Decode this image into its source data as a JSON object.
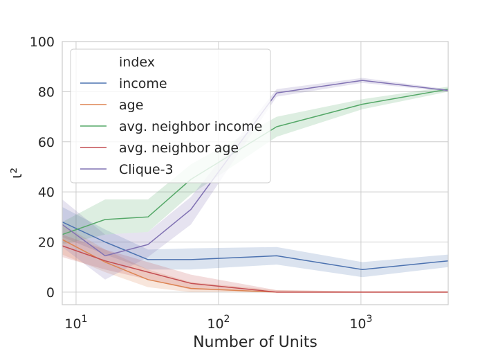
{
  "chart_data": {
    "type": "line",
    "title": "",
    "xlabel": "Number of Units",
    "ylabel": "ι²",
    "x_scale": "log",
    "xlim": [
      8,
      4096
    ],
    "ylim": [
      -5,
      100
    ],
    "grid": true,
    "x_ticks": [
      {
        "value": 10,
        "base": "10",
        "exp": "1"
      },
      {
        "value": 100,
        "base": "10",
        "exp": "2"
      },
      {
        "value": 1000,
        "base": "10",
        "exp": "3"
      }
    ],
    "y_ticks": [
      {
        "value": 0,
        "label": "0"
      },
      {
        "value": 20,
        "label": "20"
      },
      {
        "value": 40,
        "label": "40"
      },
      {
        "value": 60,
        "label": "60"
      },
      {
        "value": 80,
        "label": "80"
      },
      {
        "value": 100,
        "label": "100"
      }
    ],
    "legend": {
      "title": "index",
      "placement": "upper-left"
    },
    "x": [
      8,
      16,
      32,
      64,
      256,
      1024,
      4096
    ],
    "series": [
      {
        "name": "income",
        "color": "#4c72b0",
        "values": [
          28,
          20,
          13,
          13,
          14.5,
          9,
          12.5
        ],
        "lower": [
          22,
          15,
          9,
          9,
          11,
          6,
          10
        ],
        "upper": [
          34,
          25,
          17,
          17.5,
          18,
          12,
          15
        ]
      },
      {
        "name": "age",
        "color": "#dd8452",
        "values": [
          21,
          12,
          5,
          1.5,
          0,
          0,
          0
        ],
        "lower": [
          15,
          8,
          2,
          0,
          0,
          0,
          0
        ],
        "upper": [
          27,
          17,
          9,
          4,
          0.8,
          0.3,
          0.3
        ]
      },
      {
        "name": "avg. neighbor income",
        "color": "#55a868",
        "values": [
          23,
          29,
          30,
          45,
          66,
          75,
          81
        ],
        "lower": [
          19,
          23,
          24,
          39,
          62,
          73,
          80
        ],
        "upper": [
          28,
          37,
          37,
          51,
          70,
          77,
          82
        ]
      },
      {
        "name": "avg. neighbor age",
        "color": "#c44e52",
        "values": [
          18.5,
          12.5,
          8,
          3.5,
          0,
          0,
          0
        ],
        "lower": [
          14,
          9,
          5,
          1,
          0,
          0,
          0
        ],
        "upper": [
          23,
          17,
          12,
          7,
          0.8,
          0.3,
          0.3
        ]
      },
      {
        "name": "Clique-3",
        "color": "#8172b3",
        "values": [
          27,
          14.5,
          19,
          33,
          79.5,
          84.5,
          80.5
        ],
        "lower": [
          18,
          5,
          14,
          27,
          78,
          83.5,
          80
        ],
        "upper": [
          37,
          23,
          24,
          38,
          81,
          85.5,
          81
        ]
      }
    ]
  }
}
